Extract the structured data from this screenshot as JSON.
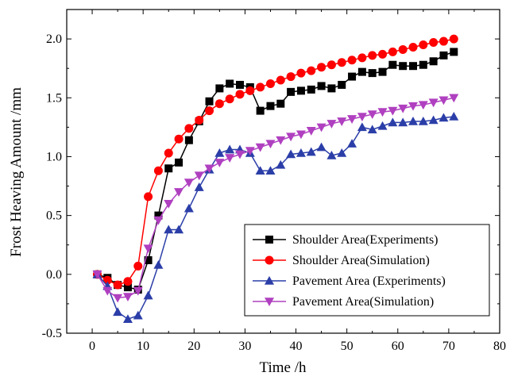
{
  "chart_data": {
    "type": "line",
    "xlabel": "Time /h",
    "ylabel": "Frost Heaving Amount /mm",
    "xlim": [
      -5,
      80
    ],
    "ylim": [
      -0.5,
      2.25
    ],
    "xticks": [
      0,
      10,
      20,
      30,
      40,
      50,
      60,
      70,
      80
    ],
    "yticks": [
      -0.5,
      0.0,
      0.5,
      1.0,
      1.5,
      2.0
    ],
    "xtick_labels": [
      "0",
      "10",
      "20",
      "30",
      "40",
      "50",
      "60",
      "70",
      "80"
    ],
    "ytick_labels": [
      "-0.5",
      "0.0",
      "0.5",
      "1.0",
      "1.5",
      "2.0"
    ],
    "grid": false,
    "legend_position": "bottom-right",
    "series": [
      {
        "name": "Shoulder Area(Experiments)",
        "color": "#000000",
        "marker": "square",
        "x": [
          1,
          3,
          5,
          7,
          9,
          11,
          13,
          15,
          17,
          19,
          21,
          23,
          25,
          27,
          29,
          31,
          33,
          35,
          37,
          39,
          41,
          43,
          45,
          47,
          49,
          51,
          53,
          55,
          57,
          59,
          61,
          63,
          65,
          67,
          69,
          71
        ],
        "y": [
          0.0,
          -0.03,
          -0.09,
          -0.11,
          -0.13,
          0.12,
          0.5,
          0.9,
          0.95,
          1.14,
          1.3,
          1.47,
          1.58,
          1.62,
          1.61,
          1.59,
          1.39,
          1.43,
          1.45,
          1.55,
          1.56,
          1.57,
          1.6,
          1.58,
          1.61,
          1.68,
          1.72,
          1.71,
          1.72,
          1.78,
          1.77,
          1.77,
          1.78,
          1.81,
          1.86,
          1.89
        ]
      },
      {
        "name": "Shoulder Area(Simulation)",
        "color": "#ff0000",
        "marker": "circle",
        "x": [
          1,
          3,
          5,
          7,
          9,
          11,
          13,
          15,
          17,
          19,
          21,
          23,
          25,
          27,
          29,
          31,
          33,
          35,
          37,
          39,
          41,
          43,
          45,
          47,
          49,
          51,
          53,
          55,
          57,
          59,
          61,
          63,
          65,
          67,
          69,
          71
        ],
        "y": [
          0.0,
          -0.05,
          -0.09,
          -0.06,
          0.07,
          0.66,
          0.88,
          1.03,
          1.15,
          1.24,
          1.31,
          1.39,
          1.45,
          1.49,
          1.53,
          1.56,
          1.59,
          1.62,
          1.65,
          1.68,
          1.71,
          1.73,
          1.76,
          1.78,
          1.8,
          1.82,
          1.84,
          1.86,
          1.87,
          1.89,
          1.91,
          1.93,
          1.95,
          1.97,
          1.98,
          2.0
        ]
      },
      {
        "name": "Pavement Area (Experiments)",
        "color": "#2b3ea8",
        "marker": "triangle-up",
        "x": [
          1,
          3,
          5,
          7,
          9,
          11,
          13,
          15,
          17,
          19,
          21,
          23,
          25,
          27,
          29,
          31,
          33,
          35,
          37,
          39,
          41,
          43,
          45,
          47,
          49,
          51,
          53,
          55,
          57,
          59,
          61,
          63,
          65,
          67,
          69,
          71
        ],
        "y": [
          0.0,
          -0.1,
          -0.32,
          -0.38,
          -0.35,
          -0.18,
          0.08,
          0.38,
          0.38,
          0.56,
          0.74,
          0.89,
          1.03,
          1.06,
          1.06,
          1.03,
          0.88,
          0.88,
          0.93,
          1.02,
          1.03,
          1.04,
          1.08,
          1.01,
          1.03,
          1.11,
          1.25,
          1.23,
          1.26,
          1.29,
          1.29,
          1.3,
          1.3,
          1.31,
          1.33,
          1.34
        ]
      },
      {
        "name": "Pavement Area(Simulation)",
        "color": "#b040c0",
        "marker": "triangle-down",
        "x": [
          1,
          3,
          5,
          7,
          9,
          11,
          13,
          15,
          17,
          19,
          21,
          23,
          25,
          27,
          29,
          31,
          33,
          35,
          37,
          39,
          41,
          43,
          45,
          47,
          49,
          51,
          53,
          55,
          57,
          59,
          61,
          63,
          65,
          67,
          69,
          71
        ],
        "y": [
          0.0,
          -0.14,
          -0.2,
          -0.19,
          -0.14,
          0.22,
          0.46,
          0.6,
          0.7,
          0.78,
          0.84,
          0.9,
          0.95,
          0.99,
          1.02,
          1.05,
          1.08,
          1.11,
          1.14,
          1.17,
          1.19,
          1.22,
          1.25,
          1.28,
          1.3,
          1.32,
          1.34,
          1.36,
          1.38,
          1.39,
          1.41,
          1.43,
          1.44,
          1.46,
          1.48,
          1.5
        ]
      }
    ]
  }
}
